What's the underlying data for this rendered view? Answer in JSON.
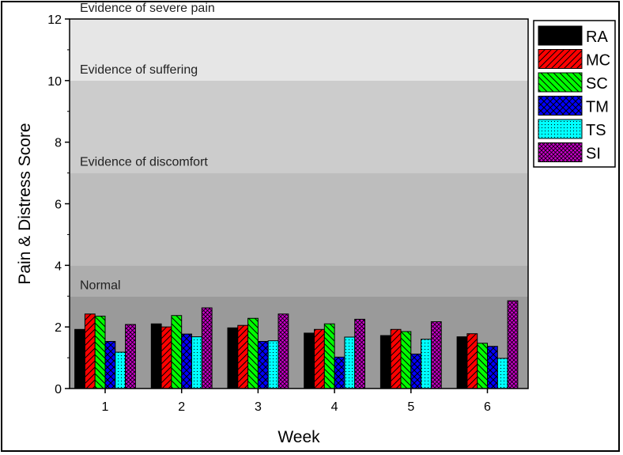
{
  "chart_data": {
    "type": "bar",
    "xlabel": "Week",
    "ylabel": "Pain & Distress Score",
    "ylim": [
      0,
      12
    ],
    "yticks": [
      0,
      2,
      4,
      6,
      8,
      10,
      12
    ],
    "categories": [
      "1",
      "2",
      "3",
      "4",
      "5",
      "6"
    ],
    "series": [
      {
        "name": "RA",
        "color": "#000000",
        "pattern": "solid",
        "values": [
          1.92,
          2.1,
          1.97,
          1.8,
          1.72,
          1.68
        ]
      },
      {
        "name": "MC",
        "color": "#ff0000",
        "pattern": "diagonal-up",
        "values": [
          2.42,
          2.0,
          2.05,
          1.92,
          1.92,
          1.78
        ]
      },
      {
        "name": "SC",
        "color": "#00ff00",
        "pattern": "diagonal-down",
        "values": [
          2.35,
          2.37,
          2.28,
          2.1,
          1.85,
          1.47
        ]
      },
      {
        "name": "TM",
        "color": "#0000ff",
        "pattern": "crosshatch",
        "values": [
          1.53,
          1.77,
          1.53,
          1.02,
          1.12,
          1.37
        ]
      },
      {
        "name": "TS",
        "color": "#00ffff",
        "pattern": "dots",
        "values": [
          1.18,
          1.68,
          1.55,
          1.67,
          1.6,
          0.98
        ]
      },
      {
        "name": "SI",
        "color": "#cc00cc",
        "pattern": "dense-crosshatch",
        "values": [
          2.08,
          2.62,
          2.42,
          2.25,
          2.17,
          2.85
        ]
      }
    ],
    "bands": [
      {
        "from": 0,
        "to": 3,
        "label": "Normal",
        "color": "#9a9a9a"
      },
      {
        "from": 3,
        "to": 4,
        "label": "",
        "color": "#adadad"
      },
      {
        "from": 4,
        "to": 7,
        "label": "Evidence of discomfort",
        "color": "#bdbdbd"
      },
      {
        "from": 7,
        "to": 10,
        "label": "Evidence of suffering",
        "color": "#cccccc"
      },
      {
        "from": 10,
        "to": 12,
        "label": "Evidence of severe pain",
        "color": "#e6e6e6"
      }
    ],
    "legend_position": "top-right",
    "grid": false
  }
}
